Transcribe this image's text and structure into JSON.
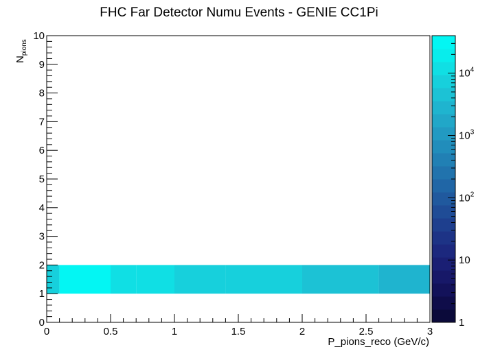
{
  "chart_data": {
    "type": "heatmap",
    "title": "FHC Far Detector Numu Events - GENIE CC1Pi",
    "xlabel": "P_pions_reco (GeV/c)",
    "ylabel_main": "N",
    "ylabel_sub": "pions",
    "xlim": [
      0,
      3
    ],
    "ylim": [
      0,
      10
    ],
    "x_ticks": [
      {
        "v": 0,
        "label": "0"
      },
      {
        "v": 0.5,
        "label": "0.5"
      },
      {
        "v": 1,
        "label": "1"
      },
      {
        "v": 1.5,
        "label": "1.5"
      },
      {
        "v": 2,
        "label": "2"
      },
      {
        "v": 2.5,
        "label": "2.5"
      },
      {
        "v": 3,
        "label": "3"
      }
    ],
    "y_ticks": [
      {
        "v": 0,
        "label": "0"
      },
      {
        "v": 1,
        "label": "1"
      },
      {
        "v": 2,
        "label": "2"
      },
      {
        "v": 3,
        "label": "3"
      },
      {
        "v": 4,
        "label": "4"
      },
      {
        "v": 5,
        "label": "5"
      },
      {
        "v": 6,
        "label": "6"
      },
      {
        "v": 7,
        "label": "7"
      },
      {
        "v": 8,
        "label": "8"
      },
      {
        "v": 9,
        "label": "9"
      },
      {
        "v": 10,
        "label": "10"
      }
    ],
    "cells": [
      {
        "x0": 0.0,
        "x1": 0.1,
        "y0": 1,
        "y1": 2,
        "z": 8000
      },
      {
        "x0": 0.1,
        "x1": 0.5,
        "y0": 1,
        "y1": 2,
        "z": 30000
      },
      {
        "x0": 0.5,
        "x1": 0.7,
        "y0": 1,
        "y1": 2,
        "z": 15000
      },
      {
        "x0": 0.7,
        "x1": 1.0,
        "y0": 1,
        "y1": 2,
        "z": 12000
      },
      {
        "x0": 1.0,
        "x1": 1.4,
        "y0": 1,
        "y1": 2,
        "z": 9000
      },
      {
        "x0": 1.4,
        "x1": 2.0,
        "y0": 1,
        "y1": 2,
        "z": 6000
      },
      {
        "x0": 2.0,
        "x1": 2.6,
        "y0": 1,
        "y1": 2,
        "z": 4500
      },
      {
        "x0": 2.6,
        "x1": 3.0,
        "y0": 1,
        "y1": 2,
        "z": 2500
      }
    ],
    "colorbar": {
      "scale": "log",
      "zlim": [
        1,
        40000
      ],
      "ticks": [
        {
          "v": 1,
          "label": "1",
          "sup": ""
        },
        {
          "v": 10,
          "label": "10",
          "sup": ""
        },
        {
          "v": 100,
          "label": "10",
          "sup": "2"
        },
        {
          "v": 1000,
          "label": "10",
          "sup": "3"
        },
        {
          "v": 10000,
          "label": "10",
          "sup": "4"
        }
      ],
      "colors": [
        "#0b0a3a",
        "#0f0d4a",
        "#13125a",
        "#171868",
        "#1a1f74",
        "#1c287e",
        "#1d3386",
        "#1e3f8e",
        "#1f4c96",
        "#20599e",
        "#2066a6",
        "#2173ad",
        "#2180b4",
        "#218dbb",
        "#229ac2",
        "#21a7c8",
        "#1fb4cf",
        "#1cc2d5",
        "#17d0dc",
        "#10dfe4",
        "#08edec",
        "#03f6f3"
      ]
    }
  }
}
